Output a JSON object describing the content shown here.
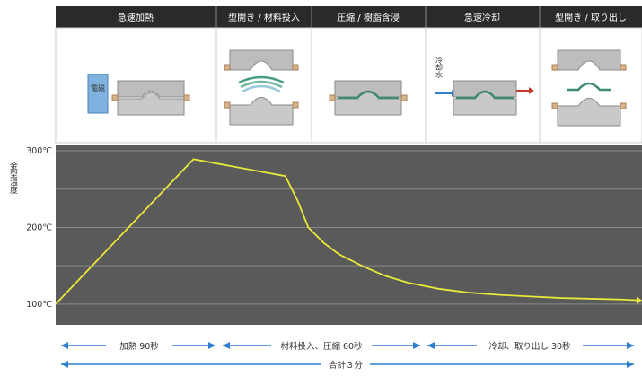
{
  "stages": [
    {
      "label": "急速加熱"
    },
    {
      "label": "型開き / 材料投入"
    },
    {
      "label": "圧縮 / 樹脂含浸"
    },
    {
      "label": "急速冷却"
    },
    {
      "label": "型開き / 取り出し"
    }
  ],
  "heater_label": "電磁",
  "coolant_label": "冷却水",
  "chart_data": {
    "type": "line",
    "title": "",
    "xlabel": "",
    "ylabel": "金型温度",
    "yticks": [
      "300℃",
      "200℃",
      "100℃"
    ],
    "ylim": [
      80,
      300
    ],
    "grid": true,
    "series": [
      {
        "name": "",
        "color": "#e8e83a",
        "x": [
          0,
          90,
          150,
          158,
          165,
          175,
          185,
          200,
          215,
          230,
          250,
          270,
          290,
          310,
          330,
          350,
          370,
          380
        ],
        "y": [
          100,
          289,
          267,
          235,
          200,
          180,
          165,
          150,
          137,
          128,
          120,
          115,
          112,
          110,
          108,
          107,
          106,
          105
        ]
      }
    ]
  },
  "durations": [
    {
      "label": "加熱 90秒"
    },
    {
      "label": "材料投入、圧縮 60秒"
    },
    {
      "label": "冷却、取り出し 30秒"
    }
  ],
  "total": "合計３分",
  "colors": {
    "header": "#2a2a2a",
    "chart_bg": "#5a5a5a",
    "mold": "#bdbdbd",
    "material": "#4a9e85",
    "heater": "#7fb2de",
    "arrow_blue": "#2f7fd0",
    "arrow_red": "#c0392b",
    "clamp": "#d9b48a"
  }
}
